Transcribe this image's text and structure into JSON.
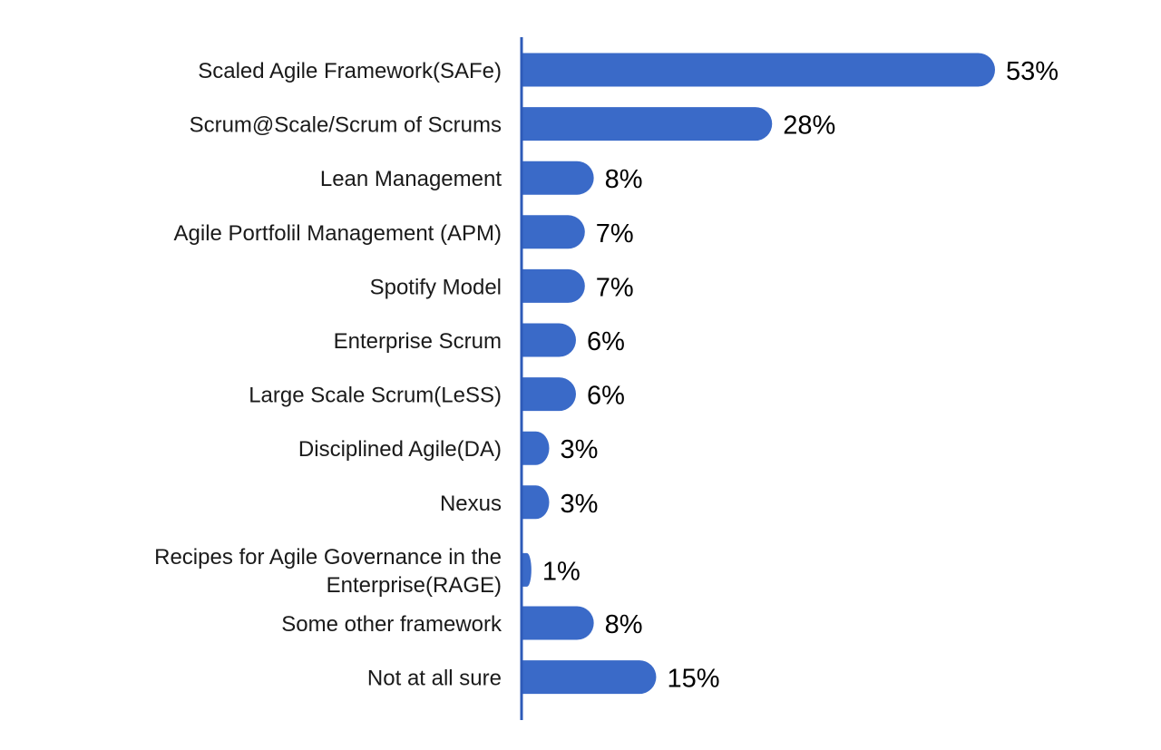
{
  "chart_data": {
    "type": "bar",
    "orientation": "horizontal",
    "title": "",
    "xlabel": "",
    "ylabel": "",
    "grid": false,
    "legend": "none",
    "xlim": [
      0,
      53
    ],
    "unit": "%",
    "bar_color": "#3A6AC8",
    "axis_color": "#2E5BB8",
    "categories": [
      "Scaled Agile Framework(SAFe)",
      "Scrum@Scale/Scrum of Scrums",
      "Lean Management",
      "Agile Portfolil Management (APM)",
      "Spotify Model",
      "Enterprise Scrum",
      "Large Scale Scrum(LeSS)",
      "Disciplined Agile(DA)",
      "Nexus",
      "Recipes for Agile Governance in the Enterprise(RAGE)",
      "Some other framework",
      "Not at all sure"
    ],
    "category_lines": [
      [
        "Scaled Agile Framework(SAFe)"
      ],
      [
        "Scrum@Scale/Scrum of Scrums"
      ],
      [
        "Lean Management"
      ],
      [
        "Agile Portfolil Management (APM)"
      ],
      [
        "Spotify Model"
      ],
      [
        "Enterprise Scrum"
      ],
      [
        "Large Scale Scrum(LeSS)"
      ],
      [
        "Disciplined Agile(DA)"
      ],
      [
        "Nexus"
      ],
      [
        "Recipes for Agile Governance in the",
        "Enterprise(RAGE)"
      ],
      [
        "Some other framework"
      ],
      [
        "Not at all sure"
      ]
    ],
    "values": [
      53,
      28,
      8,
      7,
      7,
      6,
      6,
      3,
      3,
      1,
      8,
      15
    ],
    "value_labels": [
      "53%",
      "28%",
      "8%",
      "7%",
      "7%",
      "6%",
      "6%",
      "3%",
      "3%",
      "1%",
      "8%",
      "15%"
    ]
  }
}
